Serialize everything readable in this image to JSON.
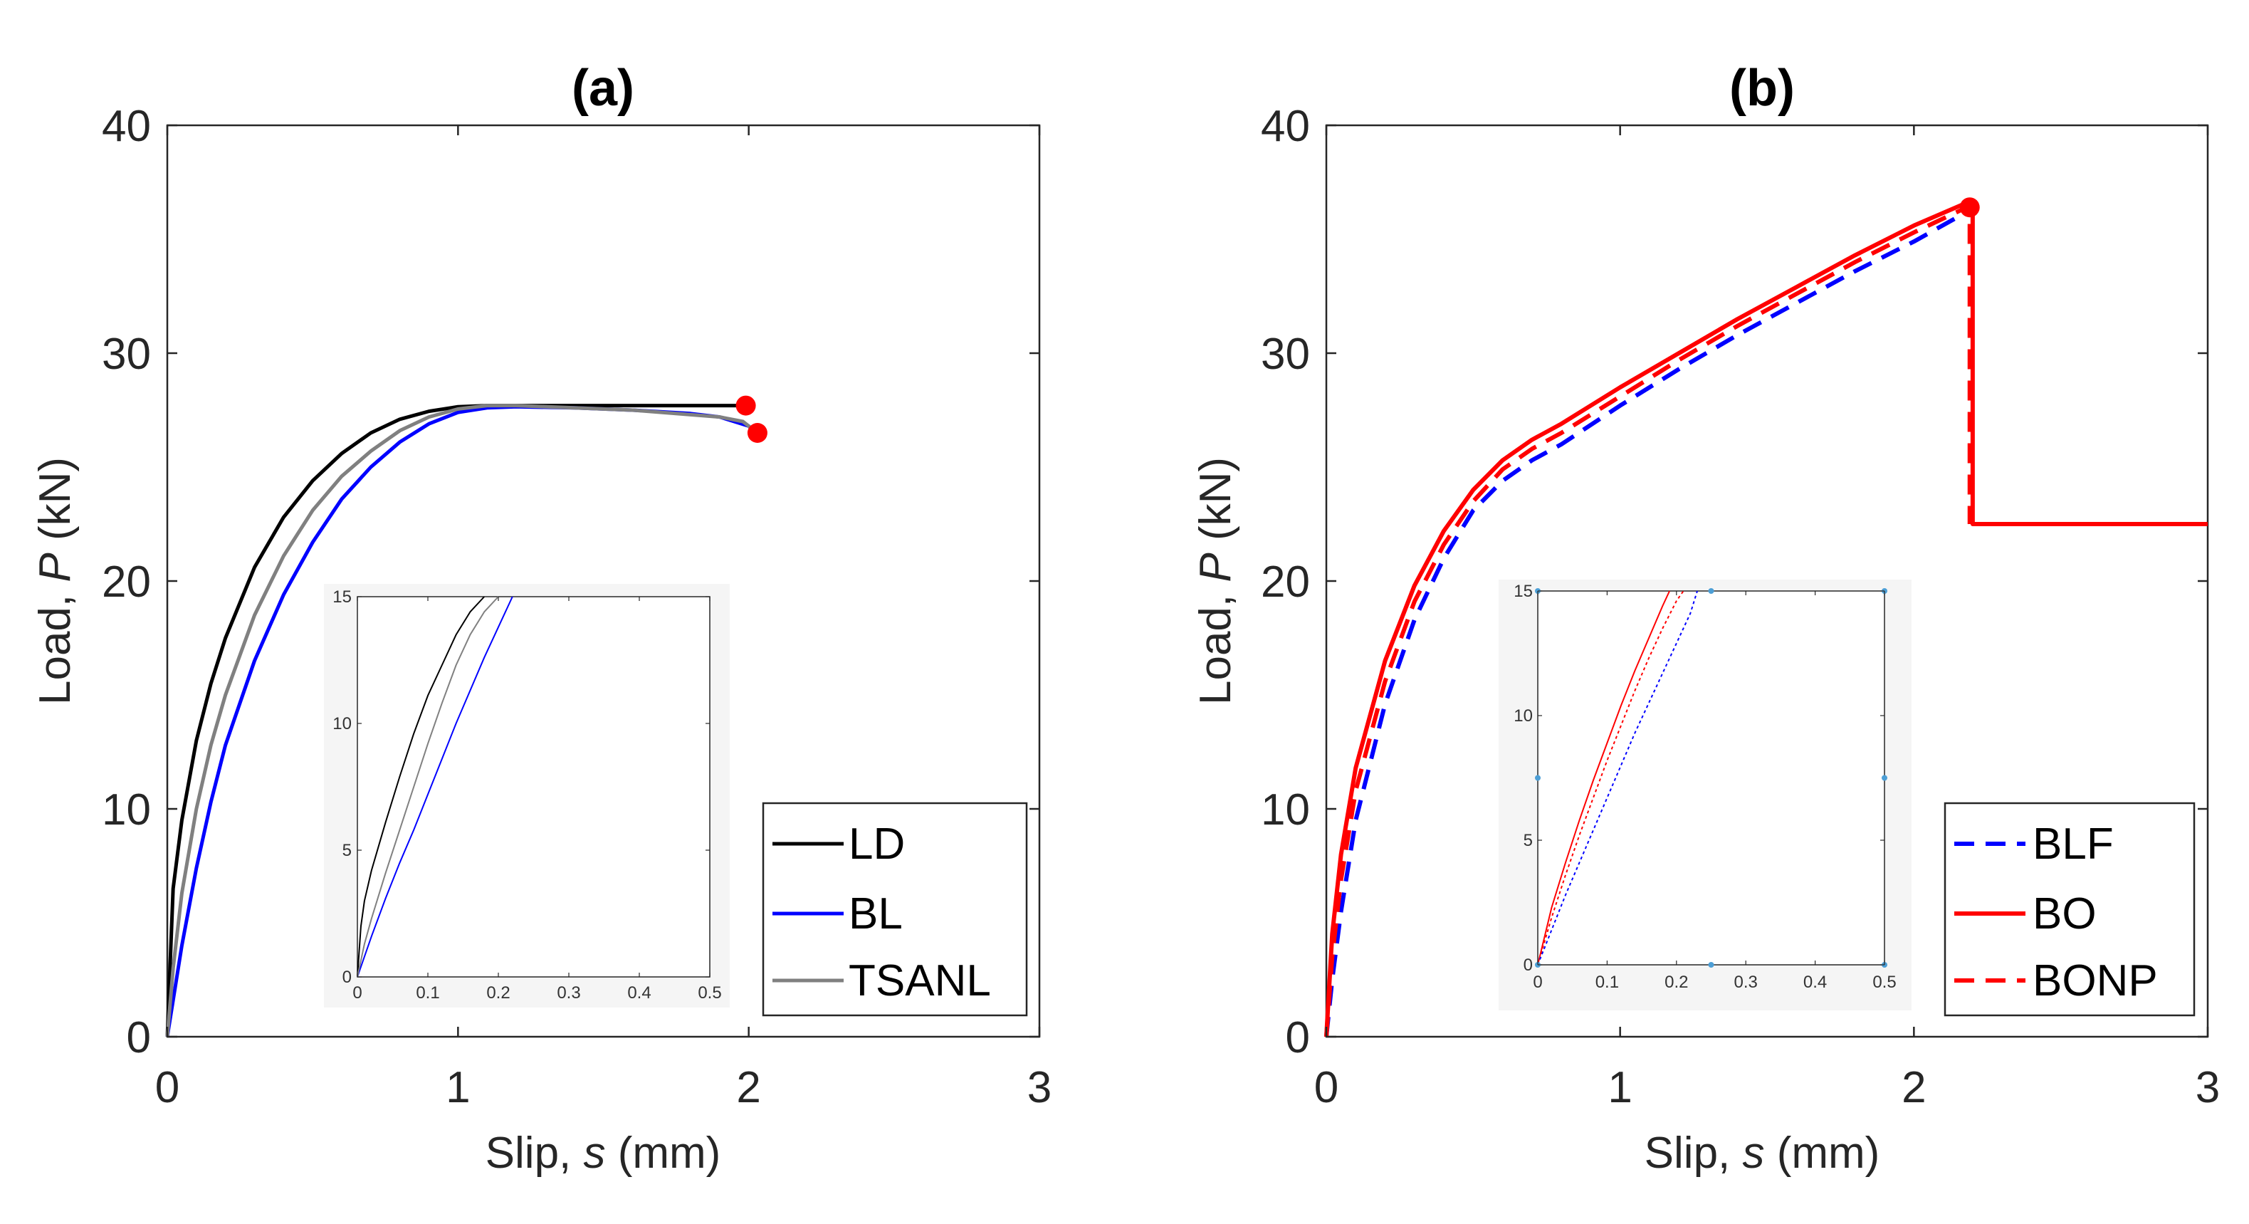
{
  "chart_data": [
    {
      "type": "line",
      "panel": "a",
      "title": "(a)",
      "xlabel_prefix": "Slip,  ",
      "xlabel_var": "s",
      "xlabel_suffix": " (mm)",
      "ylabel_prefix": "Load,  ",
      "ylabel_var": "P",
      "ylabel_suffix": " (kN)",
      "xlim": [
        0,
        3
      ],
      "ylim": [
        0,
        40
      ],
      "xticks": [
        "0",
        "1",
        "2",
        "3"
      ],
      "yticks": [
        "0",
        "10",
        "20",
        "30",
        "40"
      ],
      "legend_position": "bottom-right",
      "series": [
        {
          "name": "LD",
          "color": "#000000",
          "dash": "solid",
          "x": [
            0,
            0.02,
            0.05,
            0.1,
            0.15,
            0.2,
            0.3,
            0.4,
            0.5,
            0.6,
            0.7,
            0.8,
            0.9,
            1.0,
            1.1,
            1.2,
            1.4,
            1.6,
            1.8,
            1.98
          ],
          "y": [
            0,
            6.5,
            9.5,
            13.0,
            15.5,
            17.5,
            20.6,
            22.8,
            24.4,
            25.6,
            26.5,
            27.1,
            27.45,
            27.65,
            27.7,
            27.7,
            27.7,
            27.7,
            27.7,
            27.7
          ]
        },
        {
          "name": "BL",
          "color": "#0000ff",
          "dash": "solid",
          "x": [
            0,
            0.05,
            0.1,
            0.15,
            0.2,
            0.3,
            0.4,
            0.5,
            0.6,
            0.7,
            0.8,
            0.9,
            1.0,
            1.1,
            1.2,
            1.4,
            1.6,
            1.8,
            1.9,
            1.95,
            2.0,
            2.02
          ],
          "y": [
            0,
            4.0,
            7.4,
            10.3,
            12.8,
            16.5,
            19.4,
            21.7,
            23.6,
            25.0,
            26.1,
            26.9,
            27.4,
            27.6,
            27.65,
            27.6,
            27.5,
            27.35,
            27.2,
            27.0,
            26.8,
            26.5
          ]
        },
        {
          "name": "TSANL",
          "color": "#808080",
          "dash": "solid",
          "x": [
            0,
            0.02,
            0.05,
            0.1,
            0.15,
            0.2,
            0.3,
            0.4,
            0.5,
            0.6,
            0.7,
            0.8,
            0.9,
            1.0,
            1.1,
            1.2,
            1.4,
            1.6,
            1.8,
            1.9,
            1.98,
            2.02
          ],
          "y": [
            0,
            3.0,
            6.3,
            10.0,
            12.8,
            15.0,
            18.5,
            21.1,
            23.1,
            24.6,
            25.7,
            26.6,
            27.2,
            27.55,
            27.7,
            27.7,
            27.6,
            27.5,
            27.3,
            27.2,
            27.0,
            26.6
          ]
        }
      ],
      "markers": [
        {
          "x": 1.99,
          "y": 27.7,
          "color": "#ff0000"
        },
        {
          "x": 2.03,
          "y": 26.5,
          "color": "#ff0000"
        }
      ],
      "inset": {
        "xlim": [
          0,
          0.5
        ],
        "ylim": [
          0,
          15
        ],
        "xticks": [
          "0",
          "0.1",
          "0.2",
          "0.3",
          "0.4",
          "0.5"
        ],
        "yticks": [
          "0",
          "5",
          "10",
          "15"
        ],
        "series": [
          {
            "name": "LD",
            "color": "#000000",
            "dash": "solid",
            "x": [
              0,
              0.005,
              0.01,
              0.02,
              0.04,
              0.06,
              0.08,
              0.1,
              0.12,
              0.14,
              0.16,
              0.18
            ],
            "y": [
              0,
              2.0,
              3.0,
              4.2,
              6.1,
              7.9,
              9.6,
              11.1,
              12.3,
              13.5,
              14.4,
              15
            ]
          },
          {
            "name": "BL",
            "color": "#0000ff",
            "dash": "solid",
            "x": [
              0,
              0.02,
              0.04,
              0.06,
              0.08,
              0.1,
              0.12,
              0.14,
              0.16,
              0.18,
              0.2,
              0.22
            ],
            "y": [
              0,
              1.6,
              3.1,
              4.5,
              5.8,
              7.2,
              8.6,
              10.0,
              11.3,
              12.6,
              13.8,
              15
            ]
          },
          {
            "name": "TSANL",
            "color": "#808080",
            "dash": "solid",
            "x": [
              0,
              0.01,
              0.02,
              0.04,
              0.06,
              0.08,
              0.1,
              0.12,
              0.14,
              0.16,
              0.18,
              0.2
            ],
            "y": [
              0,
              1.3,
              2.3,
              4.1,
              5.8,
              7.5,
              9.2,
              10.8,
              12.3,
              13.5,
              14.4,
              15
            ]
          }
        ]
      }
    },
    {
      "type": "line",
      "panel": "b",
      "title": "(b)",
      "xlabel_prefix": "Slip,  ",
      "xlabel_var": "s",
      "xlabel_suffix": " (mm)",
      "ylabel_prefix": "Load,  ",
      "ylabel_var": "P",
      "ylabel_suffix": " (kN)",
      "xlim": [
        0,
        3
      ],
      "ylim": [
        0,
        40
      ],
      "xticks": [
        "0",
        "1",
        "2",
        "3"
      ],
      "yticks": [
        "0",
        "10",
        "20",
        "30",
        "40"
      ],
      "legend_position": "bottom-right",
      "series": [
        {
          "name": "BLF",
          "color": "#0000ff",
          "dash": "dashed",
          "x": [
            0,
            0.02,
            0.05,
            0.1,
            0.2,
            0.3,
            0.4,
            0.5,
            0.6,
            0.7,
            0.8,
            1.0,
            1.2,
            1.4,
            1.6,
            1.8,
            2.0,
            2.18
          ],
          "y": [
            0,
            2.5,
            5.5,
            9.5,
            14.6,
            18.3,
            21.0,
            23.1,
            24.4,
            25.3,
            26.0,
            27.7,
            29.3,
            30.8,
            32.2,
            33.6,
            34.9,
            36.2
          ]
        },
        {
          "name": "BO",
          "color": "#ff0000",
          "dash": "solid",
          "x": [
            0,
            0.02,
            0.05,
            0.1,
            0.2,
            0.3,
            0.4,
            0.5,
            0.6,
            0.7,
            0.8,
            1.0,
            1.2,
            1.4,
            1.6,
            1.8,
            2.0,
            2.18,
            2.2,
            2.2,
            3.0
          ],
          "y": [
            0,
            4.5,
            8.0,
            11.8,
            16.5,
            19.8,
            22.2,
            24.0,
            25.3,
            26.2,
            26.9,
            28.5,
            30.0,
            31.5,
            32.9,
            34.3,
            35.6,
            36.6,
            36.6,
            22.5,
            22.5
          ]
        },
        {
          "name": "BONP",
          "color": "#ff0000",
          "dash": "dashed",
          "x": [
            0,
            0.02,
            0.05,
            0.1,
            0.2,
            0.3,
            0.4,
            0.5,
            0.6,
            0.7,
            0.8,
            1.0,
            1.2,
            1.4,
            1.6,
            1.8,
            2.0,
            2.18,
            2.19,
            2.19
          ],
          "y": [
            0,
            3.5,
            6.9,
            10.8,
            15.6,
            19.1,
            21.6,
            23.5,
            24.9,
            25.8,
            26.5,
            28.1,
            29.7,
            31.2,
            32.6,
            34.0,
            35.3,
            36.4,
            36.4,
            22.5
          ]
        }
      ],
      "markers": [
        {
          "x": 2.19,
          "y": 36.4,
          "color": "#ff0000"
        }
      ],
      "inset": {
        "xlim": [
          0,
          0.5
        ],
        "ylim": [
          0,
          15
        ],
        "xticks": [
          "0",
          "0.1",
          "0.2",
          "0.3",
          "0.4",
          "0.5"
        ],
        "yticks": [
          "0",
          "5",
          "10",
          "15"
        ],
        "series": [
          {
            "name": "BO",
            "color": "#ff0000",
            "dash": "solid",
            "x": [
              0,
              0.02,
              0.04,
              0.06,
              0.08,
              0.1,
              0.12,
              0.14,
              0.16,
              0.18,
              0.19
            ],
            "y": [
              0,
              2.3,
              4.1,
              5.8,
              7.4,
              8.9,
              10.4,
              11.8,
              13.1,
              14.4,
              15
            ]
          },
          {
            "name": "BONP",
            "color": "#ff0000",
            "dash": "dotted",
            "x": [
              0,
              0.02,
              0.04,
              0.06,
              0.08,
              0.1,
              0.12,
              0.14,
              0.16,
              0.18,
              0.2,
              0.21
            ],
            "y": [
              0,
              1.9,
              3.6,
              5.2,
              6.7,
              8.2,
              9.6,
              11.0,
              12.3,
              13.5,
              14.6,
              15
            ]
          },
          {
            "name": "BLF",
            "color": "#0000ff",
            "dash": "dotted",
            "x": [
              0,
              0.02,
              0.04,
              0.06,
              0.08,
              0.1,
              0.12,
              0.14,
              0.16,
              0.18,
              0.2,
              0.22,
              0.23
            ],
            "y": [
              0,
              1.4,
              2.8,
              4.1,
              5.4,
              6.7,
              8.0,
              9.3,
              10.5,
              11.7,
              12.9,
              14.1,
              15
            ]
          }
        ],
        "points": [
          {
            "x": 0,
            "y": 0
          },
          {
            "x": 0.25,
            "y": 0
          },
          {
            "x": 0.5,
            "y": 0
          },
          {
            "x": 0,
            "y": 7.5
          },
          {
            "x": 0.5,
            "y": 7.5
          },
          {
            "x": 0,
            "y": 15
          },
          {
            "x": 0.25,
            "y": 15
          },
          {
            "x": 0.5,
            "y": 15
          }
        ]
      }
    }
  ]
}
